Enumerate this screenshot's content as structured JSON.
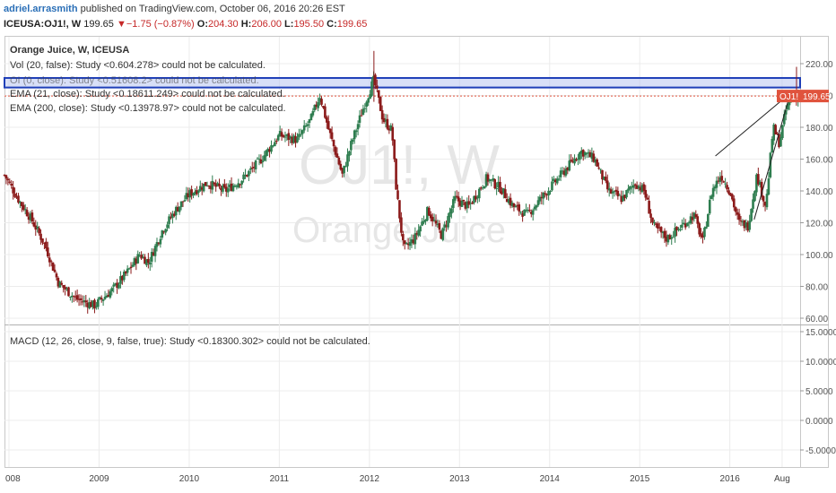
{
  "header": {
    "author": "adriel.arrasmith",
    "published_text": " published on TradingView.com, October 06, 2016 20:26 EST",
    "symbol": "ICEUSA:OJ1!, W",
    "last_price": "199.65",
    "change_arrow": "▼",
    "change": "−1.75 (−0.87%)",
    "o_label": "O:",
    "o_value": "204.30",
    "h_label": "H:",
    "h_value": "206.00",
    "l_label": "L:",
    "l_value": "195.50",
    "c_label": "C:",
    "c_value": "199.65"
  },
  "legend": {
    "title": "Orange Juice, W, ICEUSA",
    "studies": [
      "Vol (20, false): Study <0.604.278> could not be calculated.",
      "OI (0, close): Study <0.51608.2> could not be calculated.",
      "EMA (21, close): Study <0.18611.249> could not be calculated.",
      "EMA (200, close): Study <0.13978.97> could not be calculated."
    ],
    "macd": "MACD (12, 26, close, 9, false, true): Study <0.18300.302> could not be calculated."
  },
  "watermark": {
    "symbol": "OJ1!, W",
    "name": "Orange Juice"
  },
  "price_tag": {
    "symbol": "OJ1!",
    "value": "199.65"
  },
  "price_axis": [
    "220.00",
    "200.00",
    "180.00",
    "160.00",
    "140.00",
    "120.00",
    "100.00",
    "80.00",
    "60.00"
  ],
  "macd_axis": [
    "15.0000",
    "10.0000",
    "5.0000",
    "0.0000",
    "-5.0000"
  ],
  "time_axis": [
    "008",
    "2009",
    "2010",
    "2011",
    "2012",
    "2013",
    "2014",
    "2015",
    "2016",
    "Aug"
  ],
  "colors": {
    "up": "#2e7d4f",
    "down": "#8b1a1a",
    "band": "#1f3fb8",
    "tag": "#e0533d"
  },
  "chart_data": {
    "type": "candlestick",
    "title": "Orange Juice, W, ICEUSA",
    "ylim": [
      55,
      230
    ],
    "x_range": [
      2007.95,
      2016.78
    ],
    "band": [
      205,
      211
    ],
    "trend_lines": [
      {
        "from": [
          2015.84,
          162
        ],
        "to": [
          2016.62,
          199
        ]
      },
      {
        "from": [
          2016.27,
          122
        ],
        "to": [
          2016.66,
          199
        ]
      }
    ],
    "anchors": [
      [
        2007.95,
        150
      ],
      [
        2008.1,
        135
      ],
      [
        2008.25,
        122
      ],
      [
        2008.4,
        106
      ],
      [
        2008.55,
        82
      ],
      [
        2008.75,
        72
      ],
      [
        2008.95,
        68
      ],
      [
        2009.15,
        78
      ],
      [
        2009.3,
        88
      ],
      [
        2009.45,
        100
      ],
      [
        2009.55,
        95
      ],
      [
        2009.7,
        115
      ],
      [
        2009.85,
        128
      ],
      [
        2010.0,
        138
      ],
      [
        2010.2,
        145
      ],
      [
        2010.4,
        140
      ],
      [
        2010.6,
        148
      ],
      [
        2010.8,
        160
      ],
      [
        2011.0,
        175
      ],
      [
        2011.2,
        172
      ],
      [
        2011.35,
        185
      ],
      [
        2011.45,
        200
      ],
      [
        2011.55,
        178
      ],
      [
        2011.7,
        150
      ],
      [
        2011.8,
        170
      ],
      [
        2011.95,
        195
      ],
      [
        2012.05,
        210
      ],
      [
        2012.15,
        185
      ],
      [
        2012.25,
        178
      ],
      [
        2012.3,
        140
      ],
      [
        2012.38,
        103
      ],
      [
        2012.5,
        110
      ],
      [
        2012.65,
        128
      ],
      [
        2012.8,
        112
      ],
      [
        2012.95,
        135
      ],
      [
        2013.1,
        130
      ],
      [
        2013.3,
        148
      ],
      [
        2013.45,
        142
      ],
      [
        2013.6,
        130
      ],
      [
        2013.75,
        125
      ],
      [
        2013.9,
        135
      ],
      [
        2014.05,
        145
      ],
      [
        2014.2,
        155
      ],
      [
        2014.35,
        165
      ],
      [
        2014.5,
        160
      ],
      [
        2014.65,
        140
      ],
      [
        2014.8,
        135
      ],
      [
        2014.95,
        145
      ],
      [
        2015.05,
        140
      ],
      [
        2015.15,
        118
      ],
      [
        2015.3,
        110
      ],
      [
        2015.45,
        117
      ],
      [
        2015.6,
        125
      ],
      [
        2015.7,
        108
      ],
      [
        2015.8,
        140
      ],
      [
        2015.9,
        150
      ],
      [
        2016.0,
        140
      ],
      [
        2016.1,
        120
      ],
      [
        2016.2,
        118
      ],
      [
        2016.3,
        150
      ],
      [
        2016.4,
        130
      ],
      [
        2016.48,
        180
      ],
      [
        2016.55,
        170
      ],
      [
        2016.62,
        190
      ],
      [
        2016.68,
        199.65
      ]
    ]
  }
}
